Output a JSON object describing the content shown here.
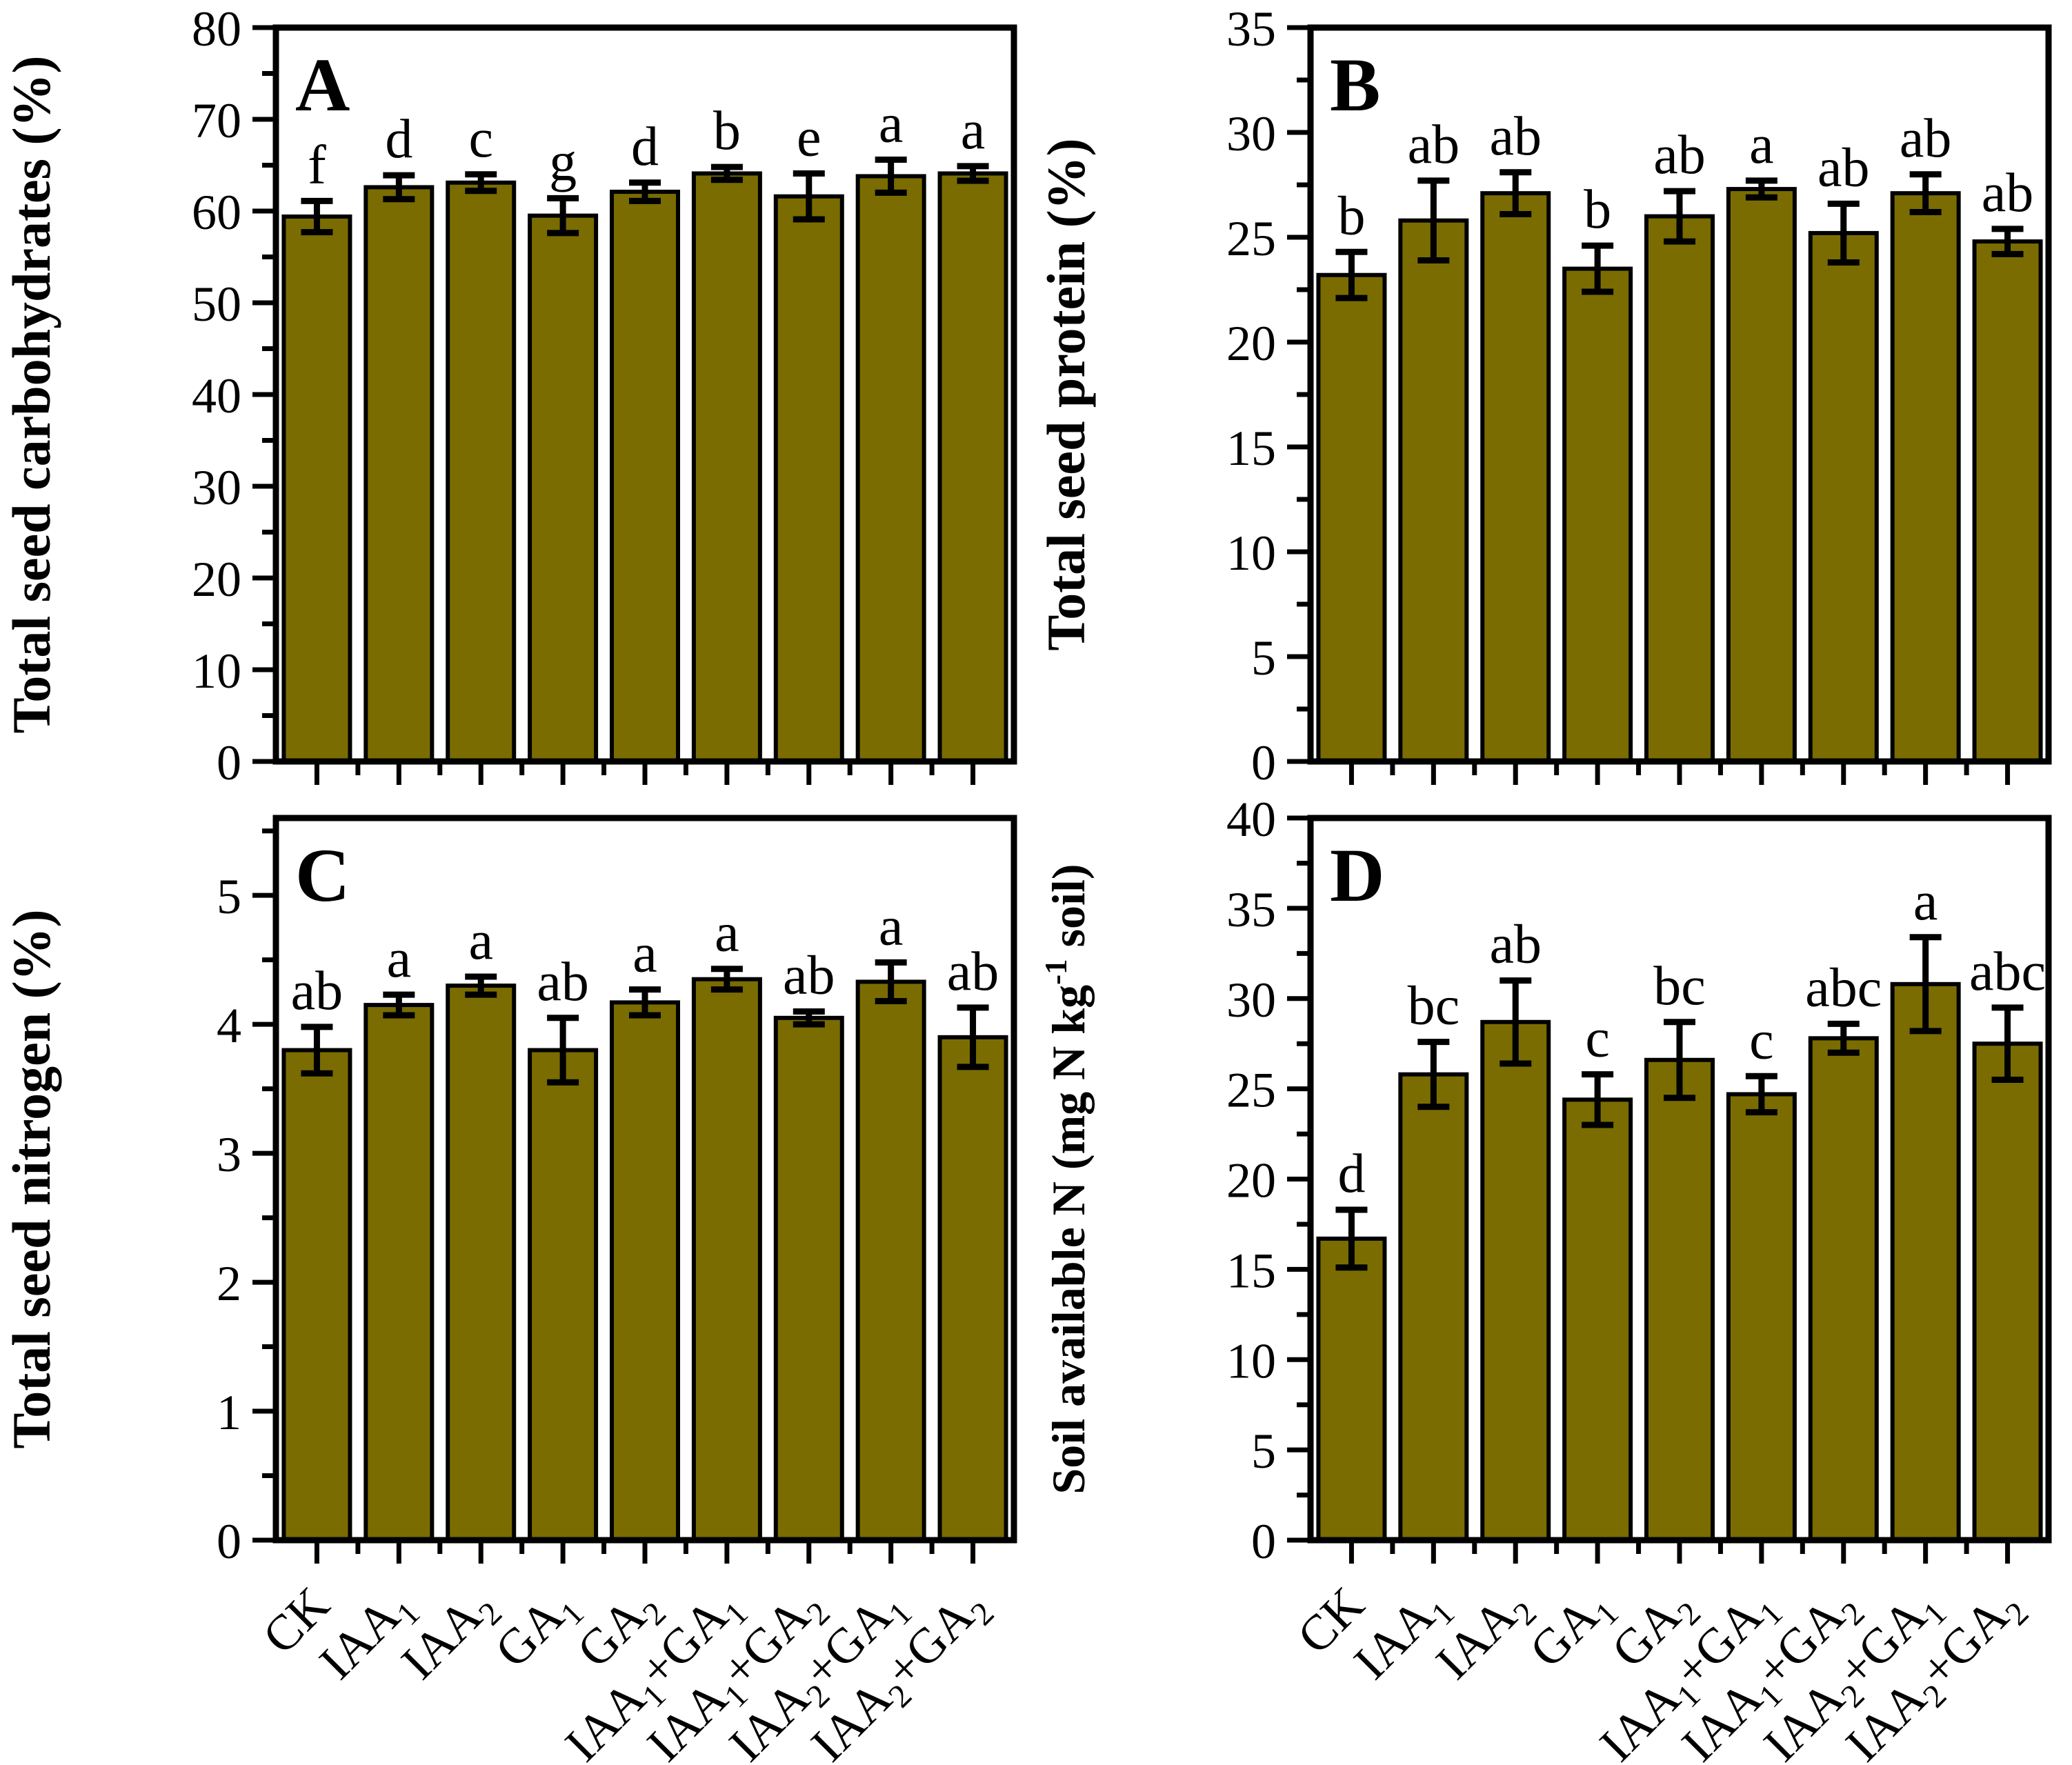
{
  "figure": {
    "bar_fill": "#7A6C01",
    "bar_stroke": "#000000",
    "axis_color": "#000000",
    "background": "#ffffff",
    "category_parts": [
      [
        {
          "t": "CK"
        }
      ],
      [
        {
          "t": "IAA"
        },
        {
          "sub": "1"
        }
      ],
      [
        {
          "t": "IAA"
        },
        {
          "sub": "2"
        }
      ],
      [
        {
          "t": "GA"
        },
        {
          "sub": "1"
        }
      ],
      [
        {
          "t": "GA"
        },
        {
          "sub": "2"
        }
      ],
      [
        {
          "t": "IAA"
        },
        {
          "sub": "1"
        },
        {
          "t": "+GA"
        },
        {
          "sub": "1"
        }
      ],
      [
        {
          "t": "IAA"
        },
        {
          "sub": "1"
        },
        {
          "t": "+GA"
        },
        {
          "sub": "2"
        }
      ],
      [
        {
          "t": "IAA"
        },
        {
          "sub": "2"
        },
        {
          "t": "+GA"
        },
        {
          "sub": "1"
        }
      ],
      [
        {
          "t": "IAA"
        },
        {
          "sub": "2"
        },
        {
          "t": "+GA"
        },
        {
          "sub": "2"
        }
      ]
    ]
  },
  "chart_data": [
    {
      "panel": "A",
      "type": "bar",
      "title": "A",
      "ylabel_parts": [
        {
          "t": "Total seed carbohydrates (%)"
        }
      ],
      "ylabel": "Total seed carbohydrates (%)",
      "ylim": [
        0,
        80
      ],
      "ytick_major": 10,
      "ytick_minor": 5,
      "categories": [
        "CK",
        "IAA1",
        "IAA2",
        "GA1",
        "GA2",
        "IAA1+GA1",
        "IAA1+GA2",
        "IAA2+GA1",
        "IAA2+GA2"
      ],
      "values": [
        59.4,
        62.6,
        63.1,
        59.5,
        62.1,
        64.1,
        61.6,
        63.8,
        64.1
      ],
      "errors": [
        1.7,
        1.3,
        0.9,
        1.9,
        1.0,
        0.7,
        2.5,
        1.8,
        0.8
      ],
      "sig_letters": [
        "f",
        "d",
        "c",
        "g",
        "d",
        "b",
        "e",
        "a",
        "a"
      ]
    },
    {
      "panel": "B",
      "type": "bar",
      "title": "B",
      "ylabel_parts": [
        {
          "t": "Total seed protein (%)"
        }
      ],
      "ylabel": "Total seed protein (%)",
      "ylim": [
        0,
        35
      ],
      "ytick_major": 5,
      "ytick_minor": 2.5,
      "categories": [
        "CK",
        "IAA1",
        "IAA2",
        "GA1",
        "GA2",
        "IAA1+GA1",
        "IAA1+GA2",
        "IAA2+GA1",
        "IAA2+GA2"
      ],
      "values": [
        23.2,
        25.8,
        27.1,
        23.5,
        26.0,
        27.3,
        25.2,
        27.1,
        24.8
      ],
      "errors": [
        1.1,
        1.9,
        1.0,
        1.1,
        1.2,
        0.4,
        1.4,
        0.9,
        0.6
      ],
      "sig_letters": [
        "b",
        "ab",
        "ab",
        "b",
        "ab",
        "a",
        "ab",
        "ab",
        "ab"
      ]
    },
    {
      "panel": "C",
      "type": "bar",
      "title": "C",
      "ylabel_parts": [
        {
          "t": "Total seed nitrogen  (%)"
        }
      ],
      "ylabel": "Total seed nitrogen (%)",
      "ylim": [
        0,
        5.6
      ],
      "ytick_major": 1,
      "ytick_minor": 0.5,
      "ytick_label_max": 5,
      "categories": [
        "CK",
        "IAA1",
        "IAA2",
        "GA1",
        "GA2",
        "IAA1+GA1",
        "IAA1+GA2",
        "IAA2+GA1",
        "IAA2+GA2"
      ],
      "values": [
        3.8,
        4.15,
        4.3,
        3.8,
        4.17,
        4.35,
        4.05,
        4.33,
        3.9
      ],
      "errors": [
        0.18,
        0.08,
        0.07,
        0.25,
        0.1,
        0.08,
        0.05,
        0.15,
        0.23
      ],
      "sig_letters": [
        "ab",
        "a",
        "a",
        "ab",
        "a",
        "a",
        "ab",
        "a",
        "ab"
      ]
    },
    {
      "panel": "D",
      "type": "bar",
      "title": "D",
      "ylabel_parts": [
        {
          "t": "Soil available N (mg N kg"
        },
        {
          "sup": "-1"
        },
        {
          "t": " soil)"
        }
      ],
      "ylabel": "Soil available N (mg N kg-1 soil)",
      "ylim": [
        0,
        40
      ],
      "ytick_major": 5,
      "ytick_minor": 2.5,
      "categories": [
        "CK",
        "IAA1",
        "IAA2",
        "GA1",
        "GA2",
        "IAA1+GA1",
        "IAA1+GA2",
        "IAA2+GA1",
        "IAA2+GA2"
      ],
      "values": [
        16.7,
        25.8,
        28.7,
        24.4,
        26.6,
        24.7,
        27.8,
        30.8,
        27.5
      ],
      "errors": [
        1.6,
        1.8,
        2.3,
        1.4,
        2.1,
        1.0,
        0.8,
        2.6,
        2.0
      ],
      "sig_letters": [
        "d",
        "bc",
        "ab",
        "c",
        "bc",
        "c",
        "abc",
        "a",
        "abc"
      ]
    }
  ]
}
